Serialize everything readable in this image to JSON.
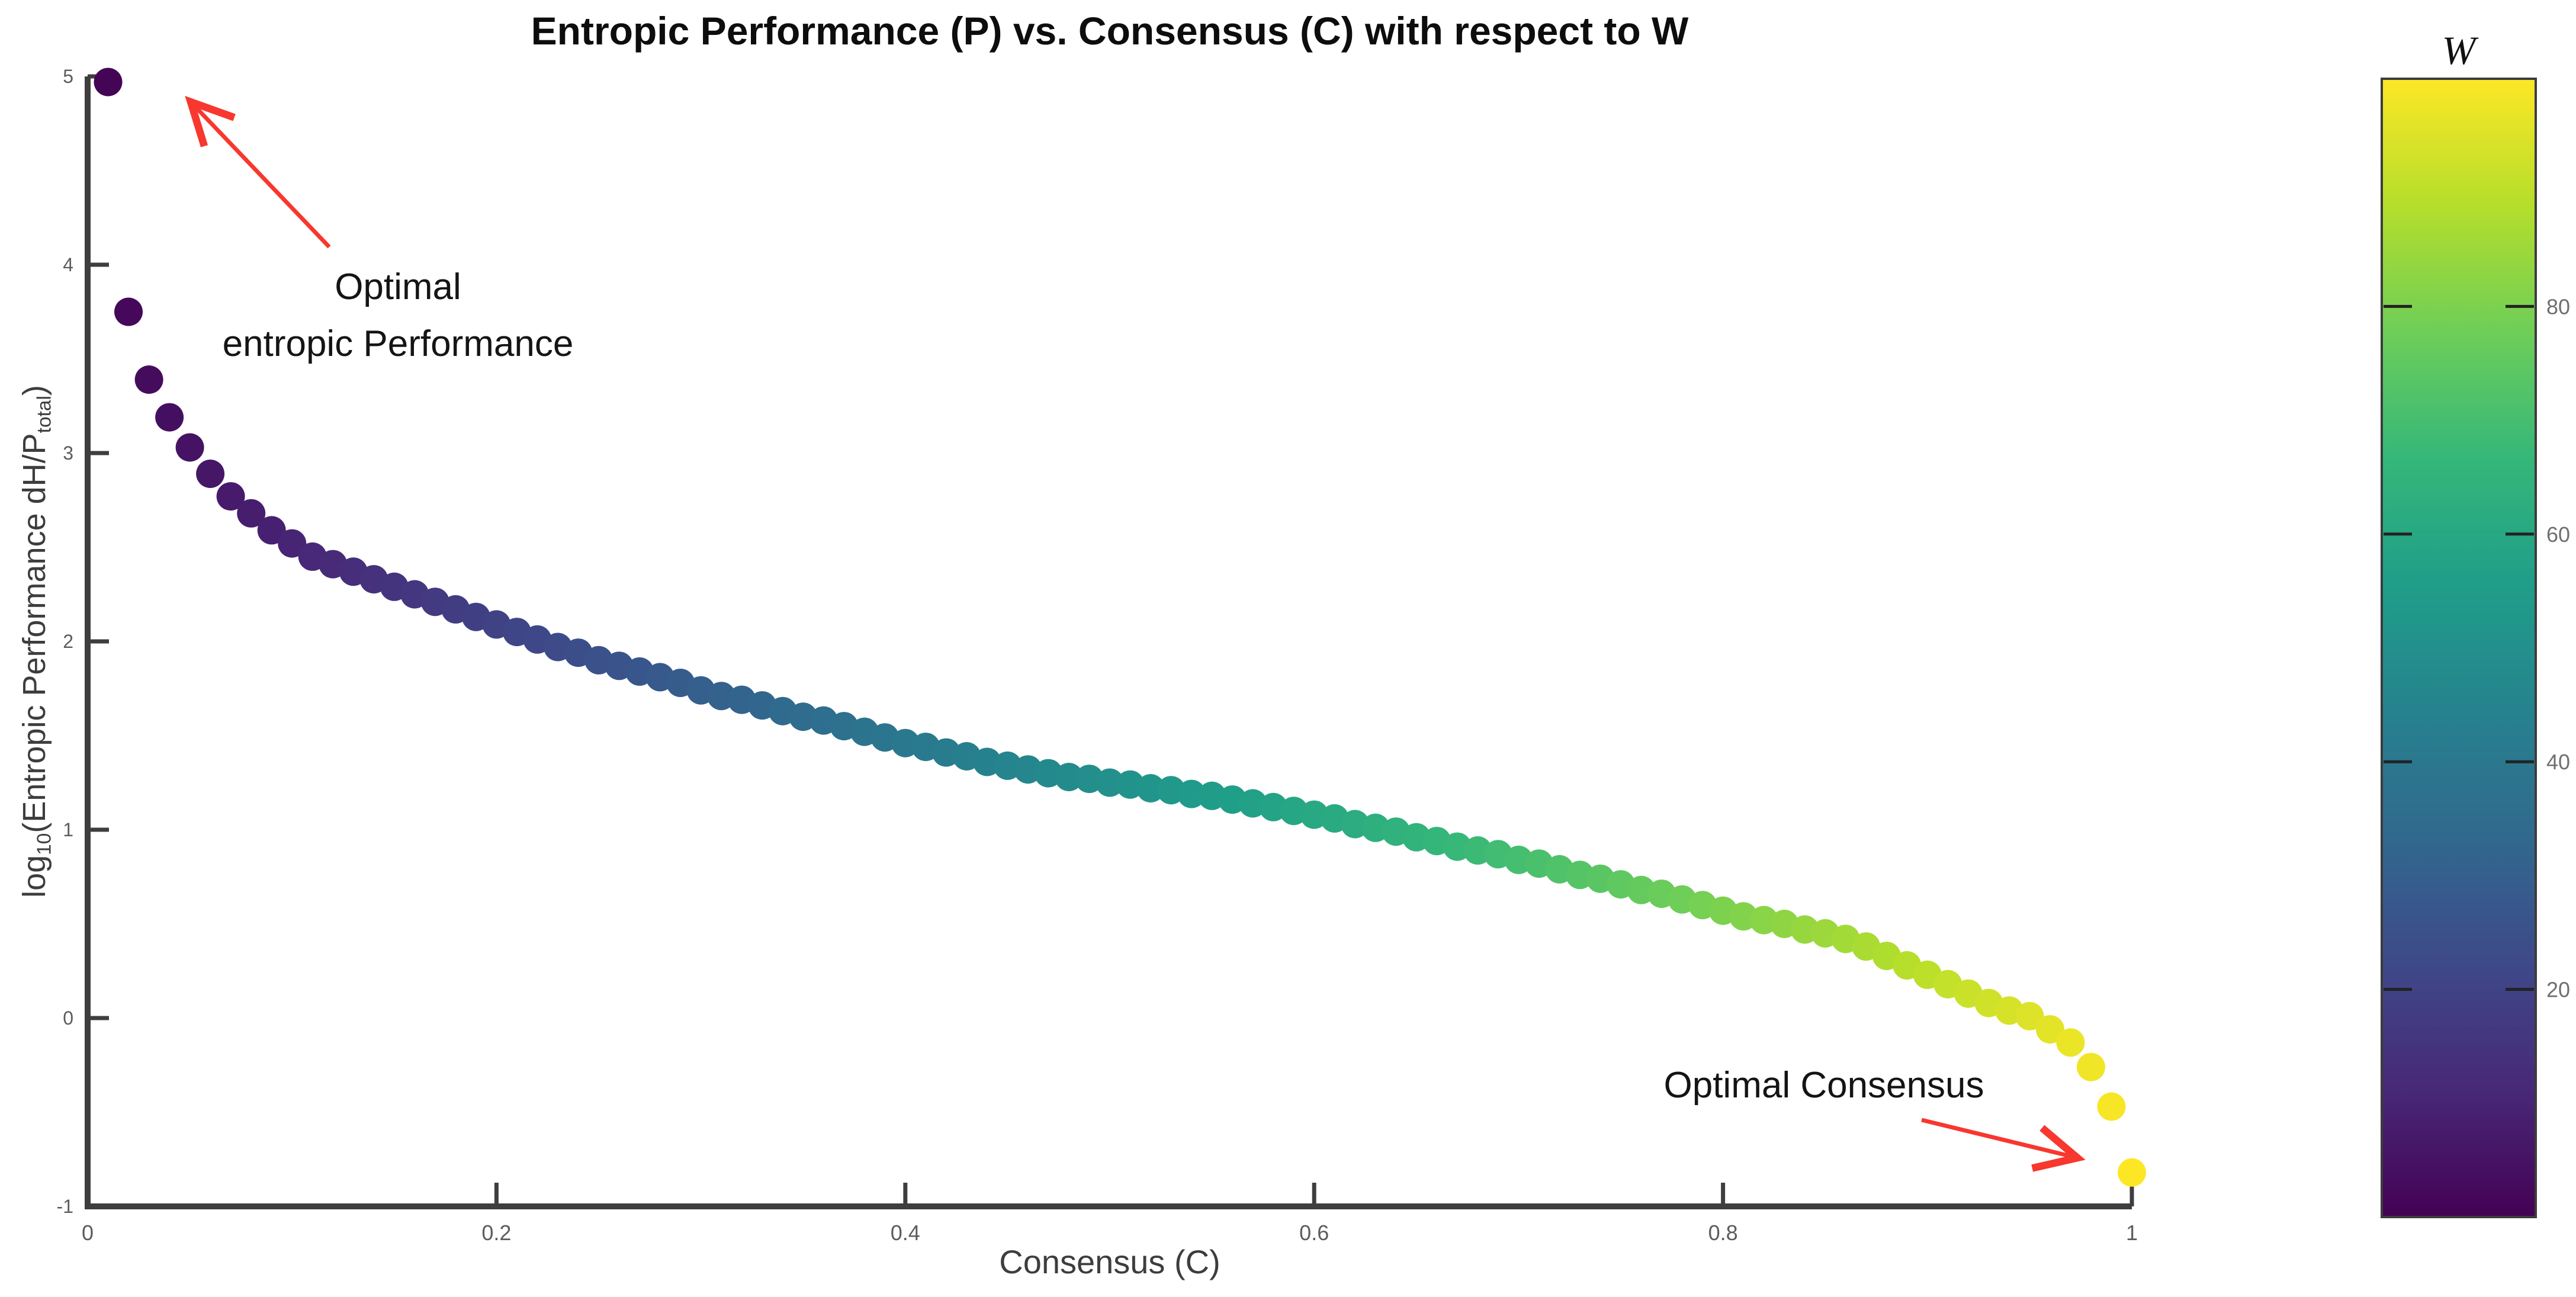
{
  "figure": {
    "title": "Entropic Performance (P) vs. Consensus (C) with respect to W",
    "x_axis": {
      "label": "Consensus (C)",
      "tick_labels": [
        "0",
        "0.2",
        "0.4",
        "0.6",
        "0.8",
        "1"
      ],
      "tick_values": [
        0,
        0.2,
        0.4,
        0.6,
        0.8,
        1
      ],
      "range": [
        0,
        1
      ]
    },
    "y_axis": {
      "label_plain": "log10(Entropic Performance dH/Ptotal)",
      "label_parts": [
        {
          "text": "log",
          "sub": false
        },
        {
          "text": "10",
          "sub": true
        },
        {
          "text": "(Entropic Performance dH/P",
          "sub": false
        },
        {
          "text": "total",
          "sub": true
        },
        {
          "text": ")",
          "sub": false
        }
      ],
      "tick_labels": [
        "5",
        "4",
        "3",
        "2",
        "1",
        "0",
        "-1"
      ],
      "tick_values": [
        5,
        4,
        3,
        2,
        1,
        0,
        -1
      ],
      "range": [
        -1,
        5
      ]
    },
    "colorbar": {
      "title": "W",
      "tick_labels": [
        "20",
        "40",
        "60",
        "80"
      ],
      "tick_values": [
        20,
        40,
        60,
        80
      ],
      "range": [
        0,
        100
      ],
      "colormap_stops": [
        {
          "t": 0.0,
          "color": "#440154"
        },
        {
          "t": 0.111,
          "color": "#482878"
        },
        {
          "t": 0.222,
          "color": "#3e4989"
        },
        {
          "t": 0.333,
          "color": "#31688e"
        },
        {
          "t": 0.444,
          "color": "#26828e"
        },
        {
          "t": 0.556,
          "color": "#1f9e89"
        },
        {
          "t": 0.667,
          "color": "#35b779"
        },
        {
          "t": 0.778,
          "color": "#6ece58"
        },
        {
          "t": 0.889,
          "color": "#b5de2b"
        },
        {
          "t": 1.0,
          "color": "#fde725"
        }
      ]
    },
    "annotations": [
      {
        "lines": [
          "Optimal",
          "entropic Performance"
        ]
      },
      {
        "lines": [
          "Optimal Consensus"
        ]
      }
    ],
    "arrow_color": "#f8372e",
    "axis_color": "#3e3e3e"
  },
  "chart_data": {
    "type": "scatter",
    "title": "Entropic Performance (P) vs. Consensus (C) with respect to W",
    "xlabel": "Consensus (C)",
    "ylabel": "log10(Entropic Performance dH/Ptotal)",
    "color_label": "W",
    "colormap": "viridis",
    "xlim": [
      0,
      1.04
    ],
    "ylim": [
      -1,
      5
    ],
    "legend": "colorbar right, W from 0 (purple) to 100 (yellow)",
    "grid": false,
    "marker_radius_px": 24,
    "w_values": [
      1,
      2,
      3,
      4,
      5,
      6,
      7,
      8,
      9,
      10,
      11,
      12,
      13,
      14,
      15,
      16,
      17,
      18,
      19,
      20,
      21,
      22,
      23,
      24,
      25,
      26,
      27,
      28,
      29,
      30,
      31,
      32,
      33,
      34,
      35,
      36,
      37,
      38,
      39,
      40,
      41,
      42,
      43,
      44,
      45,
      46,
      47,
      48,
      49,
      50,
      51,
      52,
      53,
      54,
      55,
      56,
      57,
      58,
      59,
      60,
      61,
      62,
      63,
      64,
      65,
      66,
      67,
      68,
      69,
      70,
      71,
      72,
      73,
      74,
      75,
      76,
      77,
      78,
      79,
      80,
      81,
      82,
      83,
      84,
      85,
      86,
      87,
      88,
      89,
      90,
      91,
      92,
      93,
      94,
      95,
      96,
      97,
      98,
      99,
      100
    ],
    "c_values": [
      0.01,
      0.02,
      0.03,
      0.04,
      0.05,
      0.06,
      0.07,
      0.08,
      0.09,
      0.1,
      0.11,
      0.12,
      0.13,
      0.14,
      0.15,
      0.16,
      0.17,
      0.18,
      0.19,
      0.2,
      0.21,
      0.22,
      0.23,
      0.24,
      0.25,
      0.26,
      0.27,
      0.28,
      0.29,
      0.3,
      0.31,
      0.32,
      0.33,
      0.34,
      0.35,
      0.36,
      0.37,
      0.38,
      0.39,
      0.4,
      0.41,
      0.42,
      0.43,
      0.44,
      0.45,
      0.46,
      0.47,
      0.48,
      0.49,
      0.5,
      0.51,
      0.52,
      0.53,
      0.54,
      0.55,
      0.56,
      0.57,
      0.58,
      0.59,
      0.6,
      0.61,
      0.62,
      0.63,
      0.64,
      0.65,
      0.66,
      0.67,
      0.68,
      0.69,
      0.7,
      0.71,
      0.72,
      0.73,
      0.74,
      0.75,
      0.76,
      0.77,
      0.78,
      0.79,
      0.8,
      0.81,
      0.82,
      0.83,
      0.84,
      0.85,
      0.86,
      0.87,
      0.88,
      0.89,
      0.9,
      0.91,
      0.92,
      0.93,
      0.94,
      0.95,
      0.96,
      0.97,
      0.98,
      0.99,
      1.0
    ],
    "p_values": [
      4.97,
      3.75,
      3.39,
      3.19,
      3.03,
      2.89,
      2.77,
      2.68,
      2.59,
      2.52,
      2.45,
      2.41,
      2.37,
      2.33,
      2.29,
      2.25,
      2.21,
      2.17,
      2.13,
      2.09,
      2.05,
      2.01,
      1.97,
      1.94,
      1.9,
      1.87,
      1.84,
      1.81,
      1.78,
      1.74,
      1.71,
      1.69,
      1.66,
      1.63,
      1.6,
      1.58,
      1.55,
      1.52,
      1.49,
      1.46,
      1.44,
      1.41,
      1.39,
      1.36,
      1.34,
      1.32,
      1.3,
      1.28,
      1.27,
      1.25,
      1.24,
      1.22,
      1.21,
      1.19,
      1.18,
      1.16,
      1.14,
      1.12,
      1.1,
      1.08,
      1.06,
      1.03,
      1.01,
      0.99,
      0.96,
      0.94,
      0.91,
      0.89,
      0.87,
      0.84,
      0.82,
      0.79,
      0.76,
      0.74,
      0.71,
      0.68,
      0.66,
      0.63,
      0.6,
      0.57,
      0.54,
      0.52,
      0.5,
      0.47,
      0.45,
      0.42,
      0.38,
      0.33,
      0.28,
      0.23,
      0.18,
      0.13,
      0.08,
      0.04,
      0.01,
      -0.06,
      -0.13,
      -0.26,
      -0.47,
      -0.82
    ],
    "annotations": [
      {
        "text": "Optimal entropic Performance",
        "points_to": {
          "c": 0.01,
          "p": 4.97
        }
      },
      {
        "text": "Optimal Consensus",
        "points_to": {
          "c": 1.0,
          "p": -0.82
        }
      }
    ]
  }
}
